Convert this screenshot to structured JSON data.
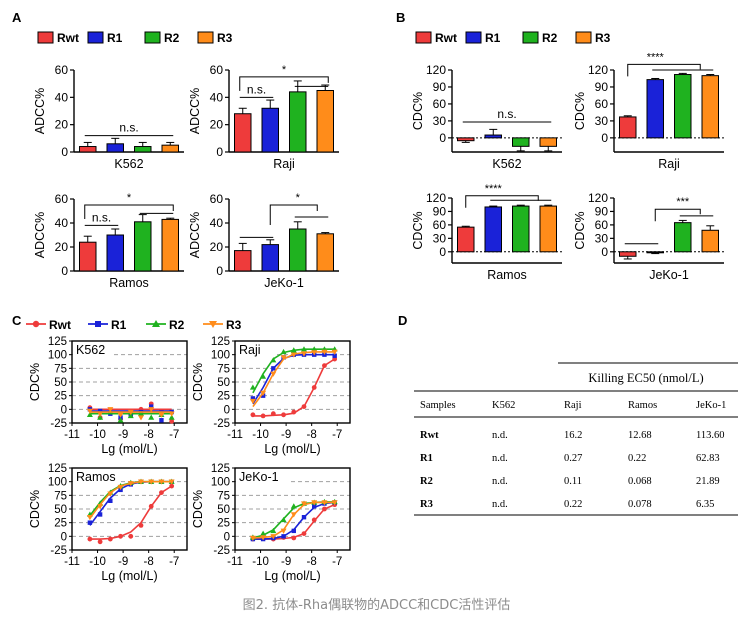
{
  "figure_caption": "图2. 抗体-Rha偶联物的ADCC和CDC活性评估",
  "colors": {
    "Rwt": "#ee3b3b",
    "R1": "#1a22d8",
    "R2": "#1fb21f",
    "R3": "#ff8c1a"
  },
  "legend": [
    "Rwt",
    "R1",
    "R2",
    "R3"
  ],
  "panels": [
    {
      "label": "A"
    },
    {
      "label": "B"
    },
    {
      "label": "C"
    },
    {
      "label": "D"
    }
  ],
  "chart_data": [
    {
      "type": "bar",
      "panel": "A",
      "title": "K562",
      "ylabel": "ADCC%",
      "ylim": [
        0,
        60
      ],
      "yticks": [
        0,
        20,
        40,
        60
      ],
      "categories": [
        "Rwt",
        "R1",
        "R2",
        "R3"
      ],
      "values": [
        4,
        6,
        4,
        5
      ],
      "errors": [
        3,
        4,
        3,
        2
      ],
      "sig": [
        {
          "text": "n.s.",
          "from": 0,
          "to": 3,
          "level": 12,
          "tx": 1.5
        }
      ]
    },
    {
      "type": "bar",
      "panel": "A",
      "title": "Raji",
      "ylabel": "ADCC%",
      "ylim": [
        0,
        60
      ],
      "yticks": [
        0,
        20,
        40,
        60
      ],
      "categories": [
        "Rwt",
        "R1",
        "R2",
        "R3"
      ],
      "values": [
        28,
        32,
        44,
        45
      ],
      "errors": [
        4,
        6,
        8,
        4
      ],
      "sig": [
        {
          "text": "*",
          "from": 0,
          "to": 3,
          "level": 55,
          "tx": 1.5
        },
        {
          "text": "n.s.",
          "from": 0,
          "to": 1,
          "level": 40,
          "tx": 0.5
        },
        {
          "text": "",
          "from": 2,
          "to": 3,
          "level": 48,
          "tx": 2.5
        }
      ]
    },
    {
      "type": "bar",
      "panel": "A",
      "title": "Ramos",
      "ylabel": "ADCC%",
      "ylim": [
        0,
        60
      ],
      "yticks": [
        0,
        20,
        40,
        60
      ],
      "categories": [
        "Rwt",
        "R1",
        "R2",
        "R3"
      ],
      "values": [
        24,
        30,
        41,
        43
      ],
      "errors": [
        5,
        5,
        6,
        1
      ],
      "sig": [
        {
          "text": "*",
          "from": 0,
          "to": 3,
          "level": 55,
          "tx": 1.5
        },
        {
          "text": "n.s.",
          "from": 0,
          "to": 1,
          "level": 38,
          "tx": 0.5
        },
        {
          "text": "",
          "from": 2,
          "to": 3,
          "level": 48,
          "tx": 2.5
        }
      ]
    },
    {
      "type": "bar",
      "panel": "A",
      "title": "JeKo-1",
      "ylabel": "ADCC%",
      "ylim": [
        0,
        60
      ],
      "yticks": [
        0,
        20,
        40,
        60
      ],
      "categories": [
        "Rwt",
        "R1",
        "R2",
        "R3"
      ],
      "values": [
        17,
        22,
        35,
        31
      ],
      "errors": [
        6,
        4,
        6,
        1
      ],
      "sig": [
        {
          "text": "",
          "from": 0,
          "to": 1,
          "level": 28,
          "tx": 0.5
        },
        {
          "text": "*",
          "from": 1,
          "to": 3,
          "level": 55,
          "tx": 2
        },
        {
          "text": "",
          "from": 2,
          "to": 3,
          "level": 45,
          "tx": 2.5
        }
      ]
    },
    {
      "type": "bar",
      "panel": "B",
      "title": "K562",
      "ylabel": "CDC%",
      "ylim": [
        -25,
        120
      ],
      "yticks": [
        0,
        30,
        60,
        90,
        120
      ],
      "categories": [
        "Rwt",
        "R1",
        "R2",
        "R3"
      ],
      "values": [
        -5,
        5,
        -15,
        -15
      ],
      "errors": [
        3,
        10,
        8,
        8
      ],
      "sig": [
        {
          "text": "n.s.",
          "from": 0,
          "to": 3,
          "level": 28,
          "tx": 1.5
        }
      ]
    },
    {
      "type": "bar",
      "panel": "B",
      "title": "Raji",
      "ylabel": "CDC%",
      "ylim": [
        -25,
        120
      ],
      "yticks": [
        0,
        30,
        60,
        90,
        120
      ],
      "categories": [
        "Rwt",
        "R1",
        "R2",
        "R3"
      ],
      "values": [
        37,
        103,
        112,
        110
      ],
      "errors": [
        2,
        2,
        2,
        2
      ],
      "sig": [
        {
          "text": "****",
          "from": 0,
          "to": 3,
          "level": 130,
          "tx": 1
        },
        {
          "text": "",
          "from": 1,
          "to": 3,
          "level": 120,
          "tx": 2
        }
      ]
    },
    {
      "type": "bar",
      "panel": "B",
      "title": "Ramos",
      "ylabel": "CDC%",
      "ylim": [
        -25,
        120
      ],
      "yticks": [
        0,
        30,
        60,
        90,
        120
      ],
      "categories": [
        "Rwt",
        "R1",
        "R2",
        "R3"
      ],
      "values": [
        55,
        100,
        102,
        102
      ],
      "errors": [
        2,
        2,
        2,
        2
      ],
      "sig": [
        {
          "text": "****",
          "from": 0,
          "to": 3,
          "level": 125,
          "tx": 1
        },
        {
          "text": "",
          "from": 1,
          "to": 3,
          "level": 115,
          "tx": 2
        }
      ]
    },
    {
      "type": "bar",
      "panel": "B",
      "title": "JeKo-1",
      "ylabel": "CDC%",
      "ylim": [
        -25,
        120
      ],
      "yticks": [
        0,
        30,
        60,
        90,
        120
      ],
      "categories": [
        "Rwt",
        "R1",
        "R2",
        "R3"
      ],
      "values": [
        -10,
        -2,
        65,
        48
      ],
      "errors": [
        6,
        2,
        5,
        10
      ],
      "sig": [
        {
          "text": "",
          "from": 0,
          "to": 1,
          "level": 18,
          "tx": 0.5
        },
        {
          "text": "***",
          "from": 1,
          "to": 3,
          "level": 95,
          "tx": 2
        },
        {
          "text": "",
          "from": 2,
          "to": 3,
          "level": 80,
          "tx": 2.5
        }
      ]
    },
    {
      "type": "line",
      "panel": "C",
      "title": "K562",
      "ylabel": "CDC%",
      "xlabel": "Lg (mol/L)",
      "xlim": [
        -11,
        -6.5
      ],
      "xticks": [
        -11,
        -10,
        -9,
        -8,
        -7
      ],
      "ylim": [
        -25,
        125
      ],
      "yticks": [
        -25,
        0,
        25,
        50,
        75,
        100,
        125
      ],
      "gridlines": [
        0,
        25,
        50,
        75,
        100
      ],
      "series": [
        {
          "name": "Rwt",
          "x": [
            -10.3,
            -9.9,
            -9.5,
            -9.1,
            -8.7,
            -8.3,
            -7.9,
            -7.5,
            -7.1
          ],
          "y": [
            3,
            -15,
            -5,
            -18,
            -10,
            0,
            10,
            -3,
            -22
          ],
          "fit": [
            0,
            0,
            0,
            0,
            0,
            0,
            0,
            0,
            0
          ]
        },
        {
          "name": "R1",
          "x": [
            -10.3,
            -9.9,
            -9.5,
            -9.1,
            -8.7,
            -8.3,
            -7.9,
            -7.5,
            -7.1
          ],
          "y": [
            0,
            -3,
            -8,
            -15,
            -10,
            -5,
            5,
            -20,
            -5
          ],
          "fit": [
            -3,
            -3,
            -3,
            -3,
            -3,
            -3,
            -3,
            -3,
            -3
          ]
        },
        {
          "name": "R2",
          "x": [
            -10.3,
            -9.9,
            -9.5,
            -9.1,
            -8.7,
            -8.3,
            -7.9,
            -7.5,
            -7.1
          ],
          "y": [
            -10,
            -15,
            -5,
            -20,
            -12,
            -8,
            -15,
            -10,
            -15
          ],
          "fit": [
            -8,
            -8,
            -8,
            -8,
            -8,
            -8,
            -8,
            -8,
            -8
          ]
        },
        {
          "name": "R3",
          "x": [
            -10.3,
            -9.9,
            -9.5,
            -9.1,
            -8.7,
            -8.3,
            -7.9,
            -7.5,
            -7.1
          ],
          "y": [
            -3,
            -8,
            0,
            -10,
            -5,
            -15,
            0,
            -10,
            -8
          ],
          "fit": [
            -5,
            -5,
            -5,
            -5,
            -5,
            -5,
            -5,
            -5,
            -5
          ]
        }
      ]
    },
    {
      "type": "line",
      "panel": "C",
      "title": "Raji",
      "ylabel": "CDC%",
      "xlabel": "Lg (mol/L)",
      "xlim": [
        -11,
        -6.5
      ],
      "xticks": [
        -11,
        -10,
        -9,
        -8,
        -7
      ],
      "ylim": [
        -25,
        125
      ],
      "yticks": [
        -25,
        0,
        25,
        50,
        75,
        100,
        125
      ],
      "gridlines": [
        0,
        25,
        50,
        75,
        100
      ],
      "series": [
        {
          "name": "Rwt",
          "x": [
            -10.3,
            -9.9,
            -9.5,
            -9.1,
            -8.7,
            -8.3,
            -7.9,
            -7.5,
            -7.1
          ],
          "y": [
            -10,
            -12,
            -8,
            -10,
            -5,
            5,
            40,
            80,
            92
          ],
          "fit": [
            -12,
            -12,
            -11,
            -10,
            -7,
            5,
            40,
            80,
            92
          ]
        },
        {
          "name": "R1",
          "x": [
            -10.3,
            -9.9,
            -9.5,
            -9.1,
            -8.7,
            -8.3,
            -7.9,
            -7.5,
            -7.1
          ],
          "y": [
            20,
            25,
            75,
            95,
            100,
            100,
            100,
            100,
            98
          ],
          "fit": [
            10,
            40,
            75,
            93,
            99,
            100,
            100,
            100,
            100
          ]
        },
        {
          "name": "R2",
          "x": [
            -10.3,
            -9.9,
            -9.5,
            -9.1,
            -8.7,
            -8.3,
            -7.9,
            -7.5,
            -7.1
          ],
          "y": [
            40,
            60,
            90,
            105,
            108,
            110,
            110,
            110,
            110
          ],
          "fit": [
            30,
            65,
            92,
            104,
            108,
            110,
            110,
            110,
            110
          ]
        },
        {
          "name": "R3",
          "x": [
            -10.3,
            -9.9,
            -9.5,
            -9.1,
            -8.7,
            -8.3,
            -7.9,
            -7.5,
            -7.1
          ],
          "y": [
            15,
            30,
            65,
            95,
            100,
            102,
            104,
            105,
            105
          ],
          "fit": [
            5,
            30,
            65,
            92,
            101,
            104,
            105,
            105,
            105
          ]
        }
      ]
    },
    {
      "type": "line",
      "panel": "C",
      "title": "Ramos",
      "ylabel": "CDC%",
      "xlabel": "Lg (mol/L)",
      "xlim": [
        -11,
        -6.5
      ],
      "xticks": [
        -11,
        -10,
        -9,
        -8,
        -7
      ],
      "ylim": [
        -25,
        125
      ],
      "yticks": [
        -25,
        0,
        25,
        50,
        75,
        100,
        125
      ],
      "gridlines": [
        0,
        25,
        50,
        75,
        100
      ],
      "series": [
        {
          "name": "Rwt",
          "x": [
            -10.3,
            -9.9,
            -9.5,
            -9.1,
            -8.7,
            -8.3,
            -7.9,
            -7.5,
            -7.1
          ],
          "y": [
            -5,
            -10,
            -5,
            0,
            0,
            20,
            55,
            80,
            92
          ],
          "fit": [
            -5,
            -5,
            -4,
            0,
            8,
            25,
            55,
            80,
            92
          ]
        },
        {
          "name": "R1",
          "x": [
            -10.3,
            -9.9,
            -9.5,
            -9.1,
            -8.7,
            -8.3,
            -7.9,
            -7.5,
            -7.1
          ],
          "y": [
            25,
            40,
            65,
            85,
            95,
            100,
            100,
            100,
            100
          ],
          "fit": [
            20,
            45,
            70,
            87,
            96,
            99,
            100,
            100,
            100
          ]
        },
        {
          "name": "R2",
          "x": [
            -10.3,
            -9.9,
            -9.5,
            -9.1,
            -8.7,
            -8.3,
            -7.9,
            -7.5,
            -7.1
          ],
          "y": [
            40,
            60,
            80,
            92,
            98,
            100,
            100,
            100,
            100
          ],
          "fit": [
            38,
            62,
            82,
            93,
            98,
            100,
            100,
            100,
            100
          ]
        },
        {
          "name": "R3",
          "x": [
            -10.3,
            -9.9,
            -9.5,
            -9.1,
            -8.7,
            -8.3,
            -7.9,
            -7.5,
            -7.1
          ],
          "y": [
            35,
            55,
            78,
            90,
            97,
            100,
            100,
            100,
            100
          ],
          "fit": [
            33,
            58,
            80,
            92,
            97,
            100,
            100,
            100,
            100
          ]
        }
      ]
    },
    {
      "type": "line",
      "panel": "C",
      "title": "JeKo-1",
      "ylabel": "CDC%",
      "xlabel": "Lg (mol/L)",
      "xlim": [
        -11,
        -6.5
      ],
      "xticks": [
        -11,
        -10,
        -9,
        -8,
        -7
      ],
      "ylim": [
        -25,
        125
      ],
      "yticks": [
        -25,
        0,
        25,
        50,
        75,
        100,
        125
      ],
      "gridlines": [
        0,
        25,
        50,
        75,
        100
      ],
      "series": [
        {
          "name": "Rwt",
          "x": [
            -10.3,
            -9.9,
            -9.5,
            -9.1,
            -8.7,
            -8.3,
            -7.9,
            -7.5,
            -7.1
          ],
          "y": [
            -5,
            -3,
            -5,
            -2,
            -3,
            5,
            30,
            50,
            58
          ],
          "fit": [
            -5,
            -5,
            -5,
            -4,
            -2,
            5,
            28,
            50,
            58
          ]
        },
        {
          "name": "R1",
          "x": [
            -10.3,
            -9.9,
            -9.5,
            -9.1,
            -8.7,
            -8.3,
            -7.9,
            -7.5,
            -7.1
          ],
          "y": [
            -5,
            -5,
            -3,
            0,
            10,
            35,
            55,
            60,
            62
          ],
          "fit": [
            -5,
            -5,
            -4,
            0,
            12,
            35,
            53,
            60,
            62
          ]
        },
        {
          "name": "R2",
          "x": [
            -10.3,
            -9.9,
            -9.5,
            -9.1,
            -8.7,
            -8.3,
            -7.9,
            -7.5,
            -7.1
          ],
          "y": [
            -2,
            5,
            10,
            30,
            55,
            60,
            62,
            63,
            63
          ],
          "fit": [
            -3,
            2,
            12,
            32,
            52,
            60,
            62,
            63,
            63
          ]
        },
        {
          "name": "R3",
          "x": [
            -10.3,
            -9.9,
            -9.5,
            -9.1,
            -8.7,
            -8.3,
            -7.9,
            -7.5,
            -7.1
          ],
          "y": [
            -3,
            -2,
            0,
            10,
            40,
            60,
            62,
            62,
            62
          ],
          "fit": [
            -3,
            -2,
            0,
            12,
            40,
            58,
            62,
            62,
            62
          ]
        }
      ]
    },
    {
      "type": "table",
      "panel": "D",
      "title": "Killing EC50 (nmol/L)",
      "columns": [
        "Samples",
        "K562",
        "Raji",
        "Ramos",
        "JeKo-1"
      ],
      "rows": [
        [
          "Rwt",
          "n.d.",
          "16.2",
          "12.68",
          "113.60"
        ],
        [
          "R1",
          "n.d.",
          "0.27",
          "0.22",
          "62.83"
        ],
        [
          "R2",
          "n.d.",
          "0.11",
          "0.068",
          "21.89"
        ],
        [
          "R3",
          "n.d.",
          "0.22",
          "0.078",
          "6.35"
        ]
      ]
    }
  ]
}
